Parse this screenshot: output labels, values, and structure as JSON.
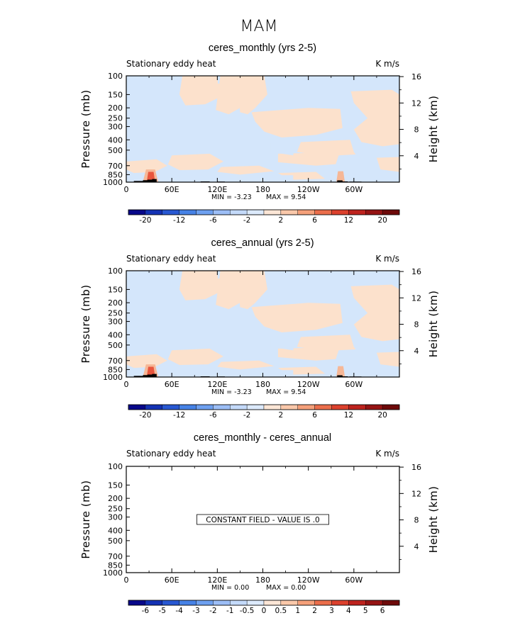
{
  "main_title": "MAM",
  "colors": {
    "neg_light": "#d4e6fb",
    "pos_light": "#fce1cc",
    "pos_mid": "#f6b796",
    "pos_dark": "#e8553d",
    "orography": "#000000"
  },
  "chart_data": [
    {
      "type": "heatmap",
      "title": "ceres_monthly (yrs 2-5)",
      "field_label": "Stationary eddy heat",
      "units_label": "K m/s",
      "ylabel": "Pressure (mb)",
      "ylabel_right": "Height (km)",
      "x_ticks": [
        "0",
        "60E",
        "120E",
        "180",
        "120W",
        "60W"
      ],
      "x_tick_lon": [
        0,
        60,
        120,
        180,
        240,
        300
      ],
      "xlim": [
        0,
        360
      ],
      "y_ticks": [
        "100",
        "150",
        "200",
        "250",
        "300",
        "400",
        "500",
        "700",
        "850",
        "1000"
      ],
      "y_tick_values": [
        100,
        150,
        200,
        250,
        300,
        400,
        500,
        700,
        850,
        1000
      ],
      "ylim": [
        100,
        1000
      ],
      "height_ticks": [
        "16",
        "12",
        "8",
        "4"
      ],
      "height_values": [
        16,
        12,
        8,
        4
      ],
      "min_text": "MIN =   -3.23",
      "max_text": "MAX =     9.54",
      "colorbar_labels": [
        "-20",
        "-12",
        "-6",
        "-2",
        "2",
        "6",
        "12",
        "20"
      ],
      "colorbar_levels": [
        -20,
        -16,
        -12,
        -8,
        -6,
        -4,
        -2,
        0,
        2,
        4,
        6,
        8,
        12,
        16,
        20
      ],
      "constant_text": "",
      "field": "pattern"
    },
    {
      "type": "heatmap",
      "title": "ceres_annual (yrs 2-5)",
      "field_label": "Stationary eddy heat",
      "units_label": "K m/s",
      "ylabel": "Pressure (mb)",
      "ylabel_right": "Height (km)",
      "x_ticks": [
        "0",
        "60E",
        "120E",
        "180",
        "120W",
        "60W"
      ],
      "x_tick_lon": [
        0,
        60,
        120,
        180,
        240,
        300
      ],
      "xlim": [
        0,
        360
      ],
      "y_ticks": [
        "100",
        "150",
        "200",
        "250",
        "300",
        "400",
        "500",
        "700",
        "850",
        "1000"
      ],
      "y_tick_values": [
        100,
        150,
        200,
        250,
        300,
        400,
        500,
        700,
        850,
        1000
      ],
      "ylim": [
        100,
        1000
      ],
      "height_ticks": [
        "16",
        "12",
        "8",
        "4"
      ],
      "height_values": [
        16,
        12,
        8,
        4
      ],
      "min_text": "MIN =   -3.23",
      "max_text": "MAX =     9.54",
      "colorbar_labels": [
        "-20",
        "-12",
        "-6",
        "-2",
        "2",
        "6",
        "12",
        "20"
      ],
      "colorbar_levels": [
        -20,
        -16,
        -12,
        -8,
        -6,
        -4,
        -2,
        0,
        2,
        4,
        6,
        8,
        12,
        16,
        20
      ],
      "constant_text": "",
      "field": "pattern"
    },
    {
      "type": "heatmap",
      "title": "ceres_monthly - ceres_annual",
      "field_label": "Stationary eddy heat",
      "units_label": "K m/s",
      "ylabel": "Pressure (mb)",
      "ylabel_right": "Height (km)",
      "x_ticks": [
        "0",
        "60E",
        "120E",
        "180",
        "120W",
        "60W"
      ],
      "x_tick_lon": [
        0,
        60,
        120,
        180,
        240,
        300
      ],
      "xlim": [
        0,
        360
      ],
      "y_ticks": [
        "100",
        "150",
        "200",
        "250",
        "300",
        "400",
        "500",
        "700",
        "850",
        "1000"
      ],
      "y_tick_values": [
        100,
        150,
        200,
        250,
        300,
        400,
        500,
        700,
        850,
        1000
      ],
      "ylim": [
        100,
        1000
      ],
      "height_ticks": [
        "16",
        "12",
        "8",
        "4"
      ],
      "height_values": [
        16,
        12,
        8,
        4
      ],
      "min_text": "MIN =     0.00",
      "max_text": "MAX =     0.00",
      "colorbar_labels": [
        "-6",
        "-5",
        "-4",
        "-3",
        "-2",
        "-1",
        "-0.5",
        "0",
        "0.5",
        "1",
        "2",
        "3",
        "4",
        "5",
        "6"
      ],
      "colorbar_levels": [
        -6,
        -5,
        -4,
        -3,
        -2,
        -1,
        -0.5,
        0,
        0.5,
        1,
        2,
        3,
        4,
        5,
        6
      ],
      "constant_text": "CONSTANT FIELD - VALUE IS .0",
      "field": "constant"
    }
  ],
  "colorbar_colors": [
    "#08088a",
    "#1432b4",
    "#2858d2",
    "#4682e6",
    "#6ea0f0",
    "#9cbef6",
    "#c4dafa",
    "#dceafc",
    "#fce6d6",
    "#fac8aa",
    "#f5a07a",
    "#eb6e4b",
    "#dc412d",
    "#be231e",
    "#961414",
    "#6e0a0a"
  ]
}
